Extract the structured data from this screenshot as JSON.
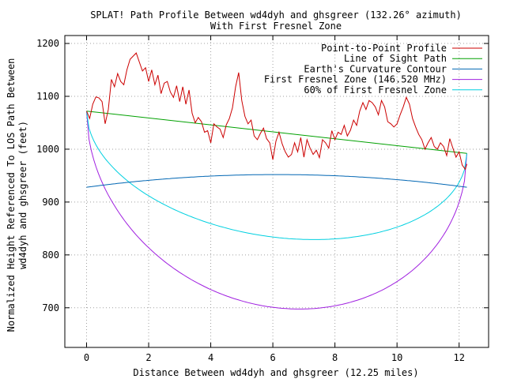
{
  "chart_data": {
    "type": "line",
    "title_line1": "SPLAT! Path Profile Between wd4dyh and ghsgreer (132.26° azimuth)",
    "title_line2": "With First Fresnel Zone",
    "xlabel": "Distance Between wd4dyh and ghsgreer (12.25 miles)",
    "ylabel_line1": "Normalized Height Referenced To LOS Path Between",
    "ylabel_line2": "wd4dyh and ghsgreer (feet)",
    "xlim": [
      -0.7,
      12.95
    ],
    "ylim": [
      625,
      1215
    ],
    "x_ticks": [
      0,
      2,
      4,
      6,
      8,
      10,
      12
    ],
    "y_ticks": [
      700,
      800,
      900,
      1000,
      1100,
      1200
    ],
    "grid": true,
    "legend_position": "top-right",
    "path_length_miles": 12.25,
    "series": [
      {
        "name": "Point-to-Point Profile",
        "color": "#cc0000",
        "x": [
          0,
          0.1,
          0.2,
          0.3,
          0.4,
          0.5,
          0.6,
          0.7,
          0.8,
          0.9,
          1.0,
          1.1,
          1.2,
          1.3,
          1.4,
          1.5,
          1.6,
          1.7,
          1.8,
          1.9,
          2.0,
          2.1,
          2.2,
          2.3,
          2.4,
          2.5,
          2.6,
          2.7,
          2.8,
          2.9,
          3.0,
          3.1,
          3.2,
          3.3,
          3.4,
          3.5,
          3.6,
          3.7,
          3.8,
          3.9,
          4.0,
          4.1,
          4.2,
          4.3,
          4.4,
          4.5,
          4.6,
          4.7,
          4.8,
          4.9,
          5.0,
          5.1,
          5.2,
          5.3,
          5.4,
          5.5,
          5.6,
          5.7,
          5.8,
          5.9,
          6.0,
          6.1,
          6.2,
          6.3,
          6.4,
          6.5,
          6.6,
          6.7,
          6.8,
          6.9,
          7.0,
          7.1,
          7.2,
          7.3,
          7.4,
          7.5,
          7.6,
          7.7,
          7.8,
          7.9,
          8.0,
          8.1,
          8.2,
          8.3,
          8.4,
          8.5,
          8.6,
          8.7,
          8.8,
          8.9,
          9.0,
          9.1,
          9.2,
          9.3,
          9.4,
          9.5,
          9.6,
          9.7,
          9.8,
          9.9,
          10.0,
          10.1,
          10.2,
          10.3,
          10.4,
          10.5,
          10.6,
          10.7,
          10.8,
          10.9,
          11.0,
          11.1,
          11.2,
          11.3,
          11.4,
          11.5,
          11.6,
          11.7,
          11.8,
          11.9,
          12.0,
          12.1,
          12.2,
          12.25
        ],
        "y": [
          1072,
          1058,
          1085,
          1099,
          1097,
          1090,
          1048,
          1075,
          1132,
          1118,
          1143,
          1128,
          1122,
          1150,
          1170,
          1176,
          1182,
          1165,
          1148,
          1154,
          1128,
          1150,
          1122,
          1140,
          1105,
          1125,
          1128,
          1108,
          1098,
          1120,
          1090,
          1118,
          1085,
          1112,
          1068,
          1050,
          1060,
          1052,
          1032,
          1035,
          1012,
          1048,
          1042,
          1038,
          1022,
          1046,
          1058,
          1078,
          1118,
          1145,
          1092,
          1062,
          1048,
          1055,
          1025,
          1018,
          1030,
          1040,
          1020,
          1012,
          980,
          1015,
          1032,
          1010,
          995,
          985,
          990,
          1012,
          995,
          1022,
          985,
          1018,
          1002,
          990,
          998,
          984,
          1018,
          1012,
          1002,
          1035,
          1018,
          1032,
          1028,
          1045,
          1025,
          1036,
          1055,
          1045,
          1072,
          1088,
          1075,
          1092,
          1088,
          1080,
          1065,
          1092,
          1080,
          1052,
          1048,
          1042,
          1048,
          1065,
          1080,
          1098,
          1085,
          1058,
          1042,
          1028,
          1018,
          1000,
          1012,
          1022,
          1005,
          1000,
          1012,
          1005,
          988,
          1020,
          1002,
          985,
          995,
          970,
          962,
          972
        ]
      },
      {
        "name": "Line of Sight Path",
        "color": "#00a000",
        "x": [
          0,
          12.25
        ],
        "y": [
          1072,
          992
        ]
      },
      {
        "name": "Earth's Curvature Contour",
        "color": "#0066b3",
        "function": "earth_curvature",
        "y_ends": 928,
        "y_mid": 952
      },
      {
        "name": "First Fresnel Zone (146.520 MHz)",
        "color": "#a020e0",
        "function": "fresnel",
        "depth_mid": 332
      },
      {
        "name": "60% of First Fresnel Zone",
        "color": "#00d0e0",
        "function": "fresnel",
        "depth_mid": 199
      }
    ]
  }
}
